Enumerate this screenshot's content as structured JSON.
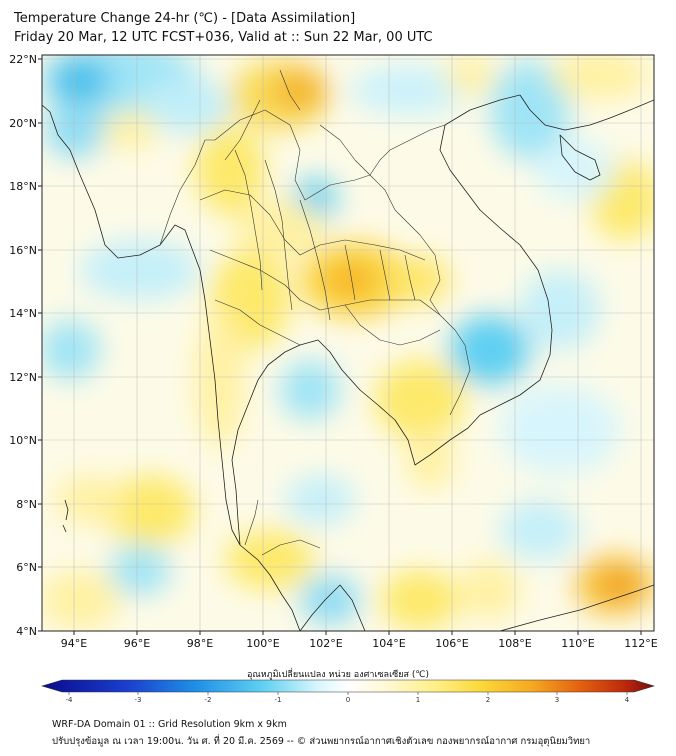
{
  "header": {
    "title": "Temperature Change 24-hr (℃) - [Data Assimilation]",
    "subtitle": "Friday 20 Mar, 12 UTC FCST+036, Valid at :: Sun 22 Mar, 00 UTC"
  },
  "axes": {
    "lon_labels": [
      "94°E",
      "96°E",
      "98°E",
      "100°E",
      "102°E",
      "104°E",
      "106°E",
      "108°E",
      "110°E",
      "112°E"
    ],
    "lat_labels": [
      "22°N",
      "20°N",
      "18°N",
      "16°N",
      "14°N",
      "12°N",
      "10°N",
      "8°N",
      "6°N",
      "4°N"
    ]
  },
  "colorbar": {
    "label": "อุณหภูมิเปลี่ยนแปลง หน่วย องศาเซลเซียส (℃)",
    "ticks": [
      "-4",
      "-3",
      "-2",
      "-1",
      "0",
      "1",
      "2",
      "3",
      "4"
    ],
    "colors": [
      "#0a0a8c",
      "#1b4fd6",
      "#2aa8e8",
      "#8fe0f5",
      "#e6fafd",
      "#ffffff",
      "#fffbe0",
      "#fff3a6",
      "#fde34f",
      "#f7c22a",
      "#f08a12",
      "#d9420c",
      "#8b0d0d"
    ]
  },
  "footer": {
    "line1": "WRF-DA Domain 01 :: Grid Resolution 9km x 9km",
    "line2": "ปรับปรุงข้อมูล ณ เวลา 19:00น. วัน ศ. ที่ 20 มี.ค. 2569 -- © ส่วนพยากรณ์อากาศเชิงตัวเลข กองพยากรณ์อากาศ กรมอุตุนิยมวิทยา"
  }
}
